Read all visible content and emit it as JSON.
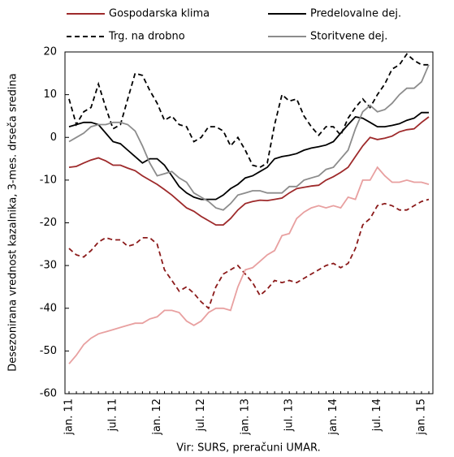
{
  "chart_data": {
    "type": "line",
    "y_label": "Desezonirana vrednost kazalnika, 3-mes. drseča sredina",
    "source": "Vir: SURS, preračuni UMAR.",
    "categories": [
      "jan. 11",
      null,
      null,
      null,
      null,
      null,
      "jul. 11",
      null,
      null,
      null,
      null,
      null,
      "jan. 12",
      null,
      null,
      null,
      null,
      null,
      "jul. 12",
      null,
      null,
      null,
      null,
      null,
      "jan. 13",
      null,
      null,
      null,
      null,
      null,
      "jul. 13",
      null,
      null,
      null,
      null,
      null,
      "jan. 14",
      null,
      null,
      null,
      null,
      null,
      "jul. 14",
      null,
      null,
      null,
      null,
      null,
      "jan. 15",
      null
    ],
    "ylim": [
      -60,
      20
    ],
    "yticks": [
      -60,
      -50,
      -40,
      -30,
      -20,
      -10,
      0,
      10,
      20
    ],
    "series": [
      {
        "name": "Gospodarska klima",
        "color": "#9e2a2b",
        "dash": false,
        "values": [
          -7,
          -6.8,
          -6,
          -5.3,
          -4.8,
          -5.5,
          -6.5,
          -6.5,
          -7.2,
          -7.8,
          -9,
          -10,
          -11,
          -12.2,
          -13.5,
          -15,
          -16.5,
          -17.3,
          -18.5,
          -19.5,
          -20.5,
          -20.5,
          -19,
          -17,
          -15.5,
          -15,
          -14.7,
          -14.8,
          -14.5,
          -14.2,
          -13,
          -12,
          -11.7,
          -11.4,
          -11.2,
          -10,
          -9.2,
          -8.2,
          -7,
          -4.5,
          -2,
          0,
          -0.5,
          -0.2,
          0.3,
          1.3,
          1.8,
          2,
          3.5,
          4.8
        ]
      },
      {
        "name": "Predelovalne dej.",
        "color": "#000000",
        "dash": false,
        "values": [
          2.5,
          3,
          3.5,
          3.5,
          3,
          1,
          -1,
          -1.5,
          -3,
          -4.5,
          -6,
          -5,
          -5,
          -6.5,
          -9,
          -11.5,
          -13,
          -14,
          -14.5,
          -14.5,
          -14.5,
          -13.5,
          -12,
          -11,
          -9.5,
          -9,
          -8,
          -7,
          -5,
          -4.5,
          -4.2,
          -3.8,
          -3,
          -2.5,
          -2.2,
          -1.8,
          -1,
          1,
          3,
          4.8,
          4.5,
          3.5,
          2.5,
          2.5,
          2.8,
          3.2,
          4,
          4.5,
          5.8,
          5.8
        ]
      },
      {
        "name": "Trg. na drobno",
        "color": "#000000",
        "dash": true,
        "values": [
          9,
          3,
          6,
          7,
          12.5,
          7,
          2,
          3,
          9,
          15,
          14.5,
          11,
          8,
          4,
          5,
          3,
          2.5,
          -1,
          0,
          2.5,
          2.5,
          1.5,
          -2,
          0,
          -3,
          -6.5,
          -7,
          -6,
          3,
          10,
          8.5,
          9,
          5,
          2.5,
          0.5,
          2.5,
          2.5,
          0.5,
          4.5,
          7,
          9,
          7,
          10,
          12.5,
          16,
          17,
          19.5,
          18,
          17,
          17
        ]
      },
      {
        "name": "Storitvene dej.",
        "color": "#8c8c8c",
        "dash": false,
        "values": [
          -1,
          0,
          1,
          2.5,
          3,
          3,
          3.5,
          3.5,
          3,
          1.5,
          -2,
          -6,
          -9,
          -8.5,
          -8,
          -9.5,
          -10.5,
          -13,
          -14,
          -15,
          -16.5,
          -17,
          -15.5,
          -13.5,
          -13,
          -12.5,
          -12.5,
          -13,
          -13,
          -13,
          -11.5,
          -11.5,
          -10,
          -9.5,
          -9,
          -7.5,
          -7,
          -5,
          -3,
          2,
          6,
          7.5,
          6,
          6.5,
          8,
          10,
          11.5,
          11.5,
          13,
          17
        ]
      },
      {
        "color": "#8b1a1a",
        "dash": true,
        "values": [
          -26,
          -27.5,
          -28,
          -26.5,
          -24.5,
          -23.5,
          -24,
          -24,
          -25.5,
          -25,
          -23.5,
          -23.5,
          -25,
          -31,
          -33.5,
          -36,
          -35,
          -36.5,
          -38.5,
          -40,
          -35,
          -32,
          -31,
          -30,
          -32,
          -34,
          -37,
          -35.5,
          -33.5,
          -34,
          -33.5,
          -34,
          -33,
          -32,
          -31,
          -30,
          -29.5,
          -30.5,
          -29.5,
          -26,
          -20.5,
          -19,
          -16,
          -15.5,
          -16,
          -17,
          -17,
          -16,
          -15,
          -14.5
        ]
      },
      {
        "color": "#e8a0a0",
        "dash": false,
        "values": [
          -53,
          -51,
          -48.5,
          -47,
          -46,
          -45.5,
          -45,
          -44.5,
          -44,
          -43.5,
          -43.5,
          -42.5,
          -42,
          -40.5,
          -40.5,
          -41,
          -43,
          -44,
          -43,
          -41,
          -40,
          -40,
          -40.5,
          -35,
          -31,
          -30.5,
          -29,
          -27.5,
          -26.5,
          -23,
          -22.5,
          -19,
          -17.5,
          -16.5,
          -16,
          -16.5,
          -16,
          -16.5,
          -14,
          -14.5,
          -10,
          -10,
          -7,
          -9,
          -10.5,
          -10.5,
          -10,
          -10.5,
          -10.5,
          -11
        ]
      }
    ]
  }
}
